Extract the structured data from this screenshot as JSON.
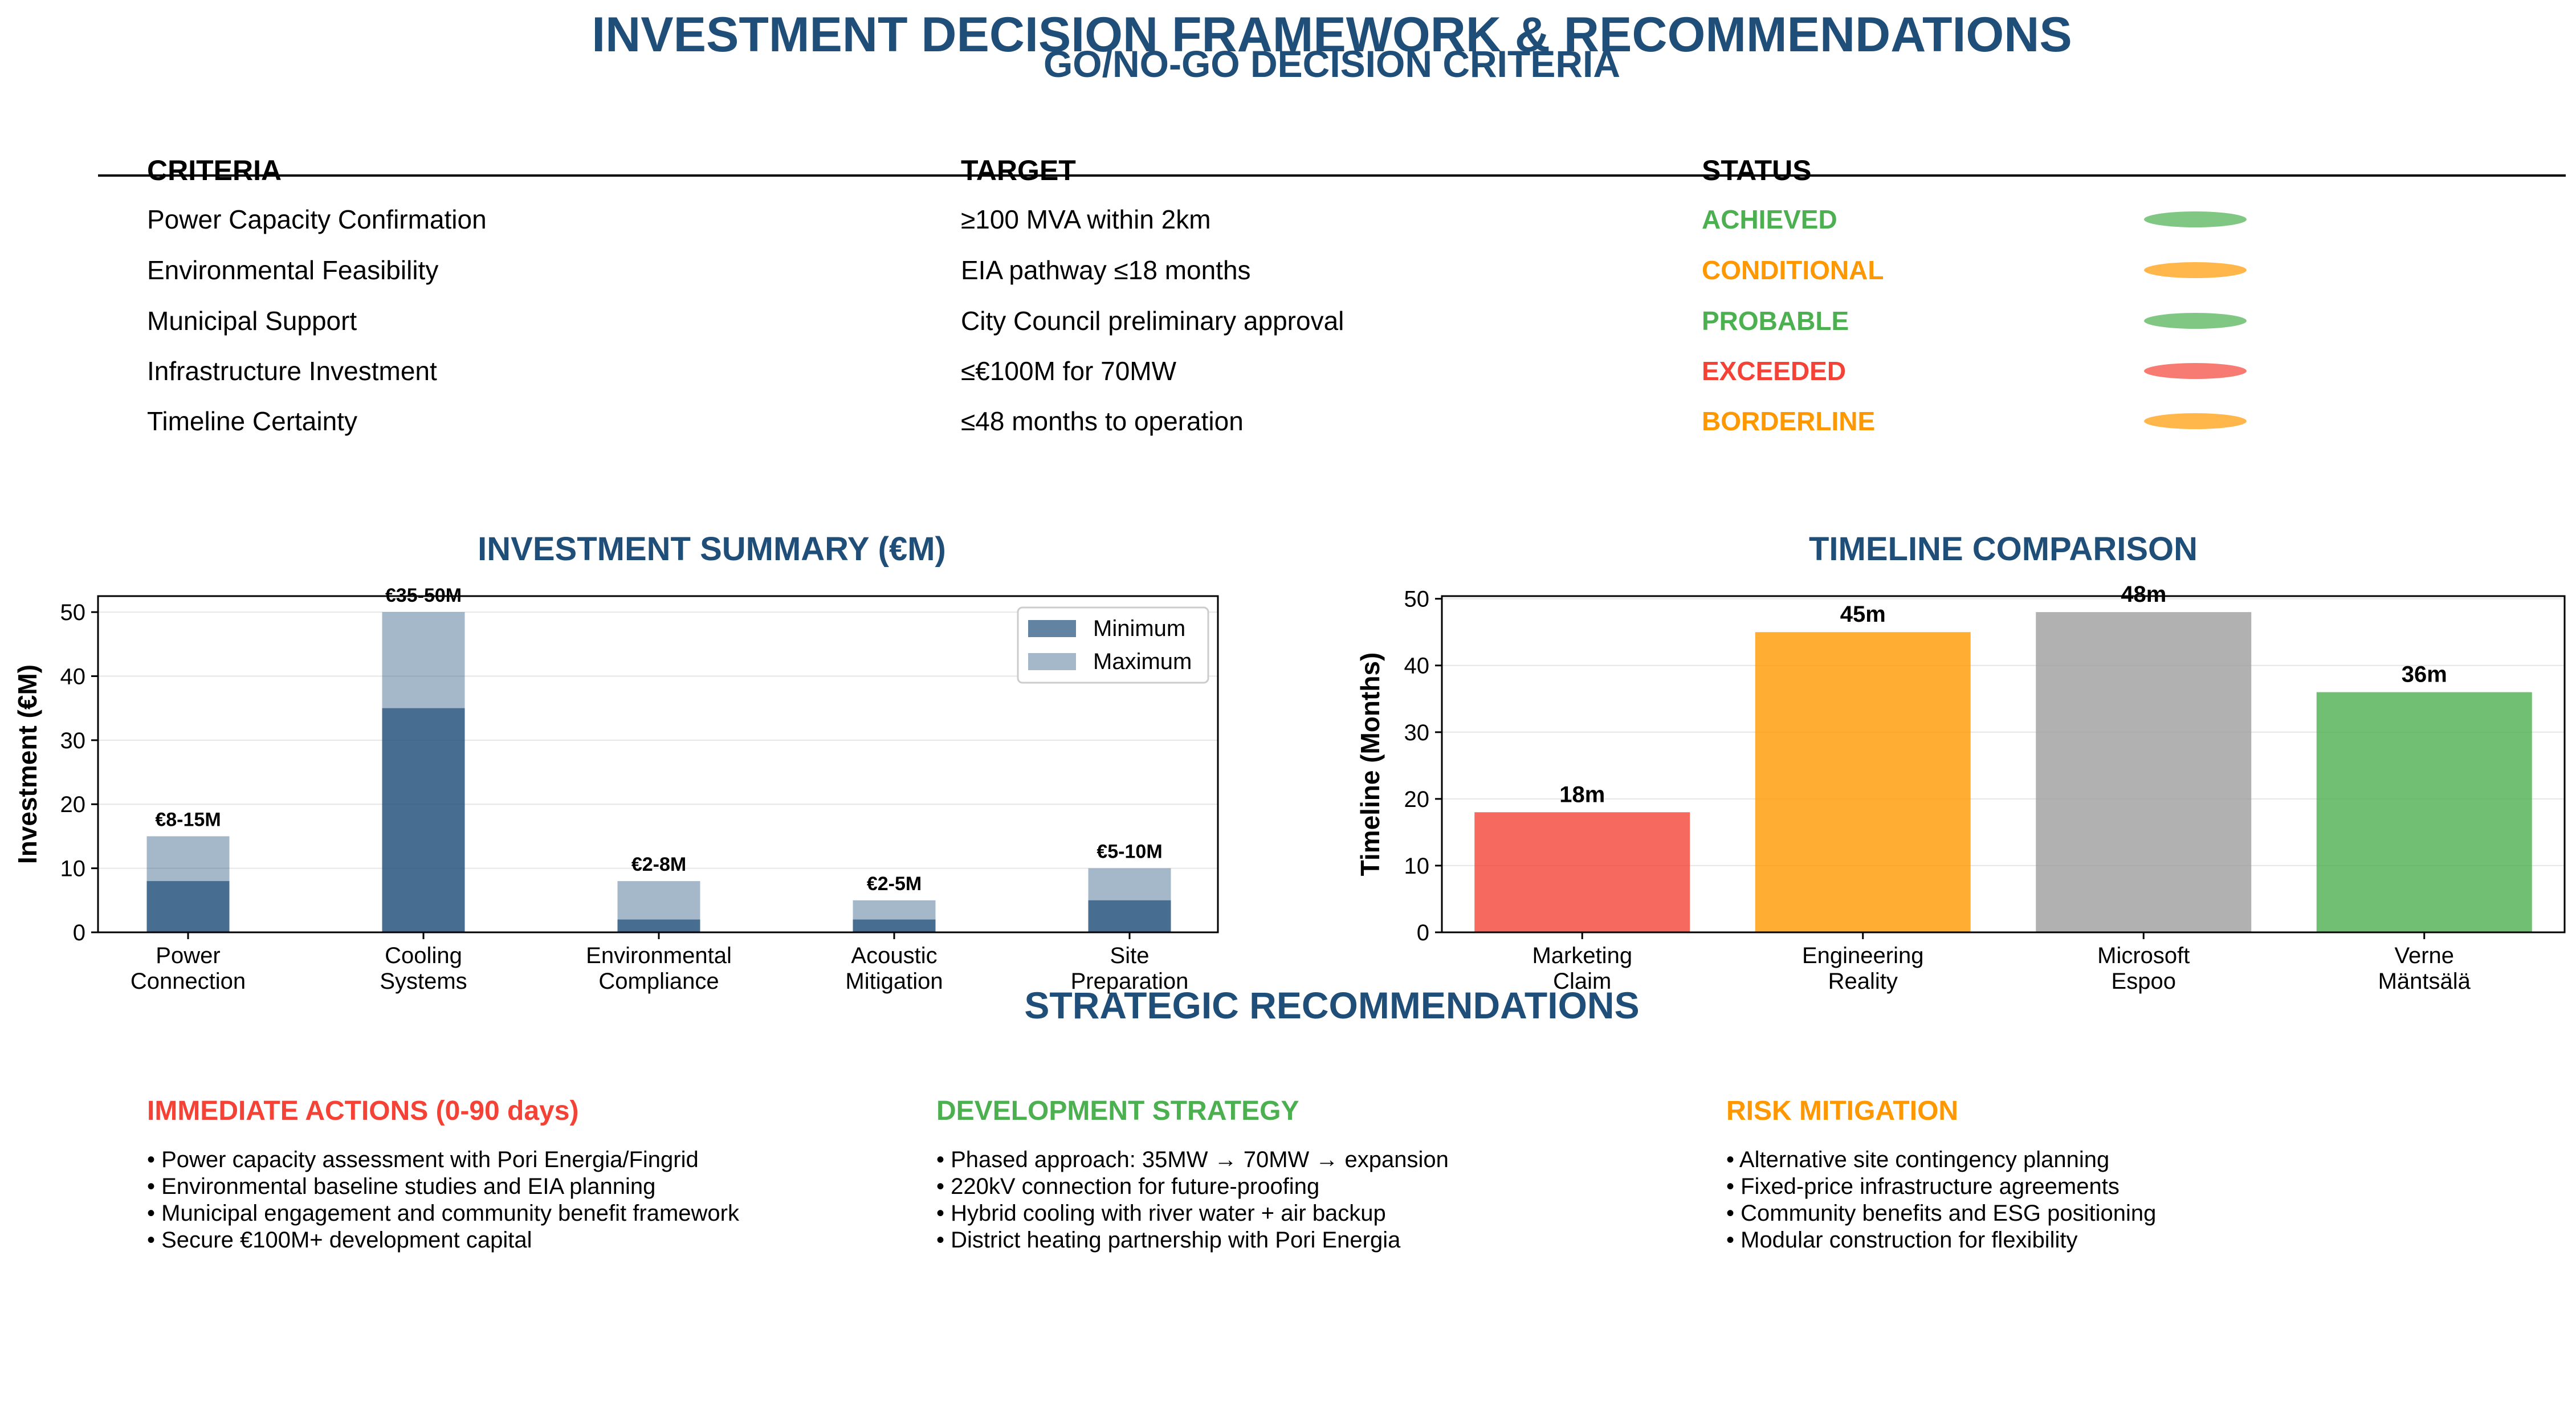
{
  "title": "INVESTMENT DECISION FRAMEWORK & RECOMMENDATIONS",
  "criteria_section": {
    "title": "GO/NO-GO DECISION CRITERIA",
    "headers": [
      "CRITERIA",
      "TARGET",
      "STATUS"
    ],
    "rows": [
      {
        "criteria": "Power Capacity Confirmation",
        "target": "≥100 MVA within 2km",
        "status": "ACHIEVED",
        "color": "#4caf50"
      },
      {
        "criteria": "Environmental Feasibility",
        "target": "EIA pathway ≤18 months",
        "status": "CONDITIONAL",
        "color": "#ff9800"
      },
      {
        "criteria": "Municipal Support",
        "target": "City Council preliminary approval",
        "status": "PROBABLE",
        "color": "#4caf50"
      },
      {
        "criteria": "Infrastructure Investment",
        "target": "≤€100M for 70MW",
        "status": "EXCEEDED",
        "color": "#f44336"
      },
      {
        "criteria": "Timeline Certainty",
        "target": "≤48 months to operation",
        "status": "BORDERLINE",
        "color": "#ff9800"
      }
    ]
  },
  "chart_data": [
    {
      "type": "bar",
      "title": "INVESTMENT SUMMARY (€M)",
      "ylabel": "Investment (€M)",
      "xlabel": "",
      "categories": [
        "Power\nConnection",
        "Cooling\nSystems",
        "Environmental\nCompliance",
        "Acoustic\nMitigation",
        "Site\nPreparation"
      ],
      "series": [
        {
          "name": "Minimum",
          "values": [
            8,
            35,
            2,
            2,
            5
          ],
          "color": "#1f4e79"
        },
        {
          "name": "Maximum",
          "values": [
            15,
            50,
            8,
            5,
            10
          ],
          "color": "#1f4e79"
        }
      ],
      "data_labels": [
        "€8-15M",
        "€35-50M",
        "€2-8M",
        "€2-5M",
        "€5-10M"
      ],
      "ylim": [
        0,
        52.5
      ],
      "yticks": [
        0,
        10,
        20,
        30,
        40,
        50
      ],
      "grid": true,
      "legend": "top-right"
    },
    {
      "type": "bar",
      "title": "TIMELINE COMPARISON",
      "ylabel": "Timeline (Months)",
      "xlabel": "",
      "categories": [
        "Marketing\nClaim",
        "Engineering\nReality",
        "Microsoft\nEspoo",
        "Verne\nMäntsälä"
      ],
      "values": [
        18,
        45,
        48,
        36
      ],
      "colors": [
        "#f44336",
        "#ff9800",
        "#9e9e9e",
        "#4caf50"
      ],
      "data_labels": [
        "18m",
        "45m",
        "48m",
        "36m"
      ],
      "ylim": [
        0,
        50.4
      ],
      "yticks": [
        0,
        10,
        20,
        30,
        40,
        50
      ],
      "grid": true
    }
  ],
  "recommendations": {
    "title": "STRATEGIC RECOMMENDATIONS",
    "columns": [
      {
        "heading": "IMMEDIATE ACTIONS (0-90 days)",
        "color": "#f44336",
        "items": [
          "• Power capacity assessment with Pori Energia/Fingrid",
          "• Environmental baseline studies and EIA planning",
          "• Municipal engagement and community benefit framework",
          "• Secure €100M+ development capital"
        ]
      },
      {
        "heading": "DEVELOPMENT STRATEGY",
        "color": "#4caf50",
        "items": [
          "• Phased approach: 35MW → 70MW → expansion",
          "• 220kV connection for future-proofing",
          "• Hybrid cooling with river water + air backup",
          "• District heating partnership with Pori Energia"
        ]
      },
      {
        "heading": "RISK MITIGATION",
        "color": "#ff9800",
        "items": [
          "• Alternative site contingency planning",
          "• Fixed-price infrastructure agreements",
          "• Community benefits and ESG positioning",
          "• Modular construction for flexibility"
        ]
      }
    ]
  }
}
